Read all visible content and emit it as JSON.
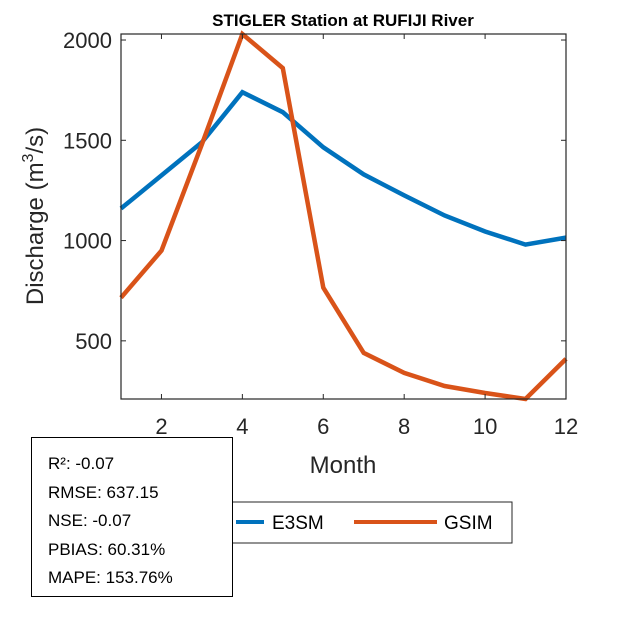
{
  "chart_data": {
    "type": "line",
    "title": "STIGLER  Station at  RUFIJI  River",
    "xlabel": "Month",
    "ylabel_main": "Discharge (m",
    "ylabel_sup": "3",
    "ylabel_end": "/s)",
    "xlim": [
      1,
      12
    ],
    "ylim": [
      210,
      2030
    ],
    "xticks": [
      2,
      4,
      6,
      8,
      10,
      12
    ],
    "yticks": [
      500,
      1000,
      1500,
      2000
    ],
    "x": [
      1,
      2,
      3,
      4,
      5,
      6,
      7,
      8,
      9,
      10,
      11,
      12
    ],
    "grid": false,
    "legend_position": "bottom-center",
    "series": [
      {
        "name": "E3SM",
        "color": "#0072BD",
        "values": [
          1160,
          1325,
          1490,
          1740,
          1640,
          1465,
          1330,
          1225,
          1125,
          1045,
          980,
          1015
        ]
      },
      {
        "name": "GSIM",
        "color": "#D95319",
        "values": [
          715,
          950,
          1480,
          2030,
          1860,
          765,
          440,
          340,
          275,
          240,
          210,
          410
        ]
      }
    ]
  },
  "stats": {
    "lines": [
      "R²: -0.07",
      "RMSE: 637.15",
      "NSE: -0.07",
      "PBIAS: 60.31%",
      "MAPE: 153.76%"
    ]
  }
}
